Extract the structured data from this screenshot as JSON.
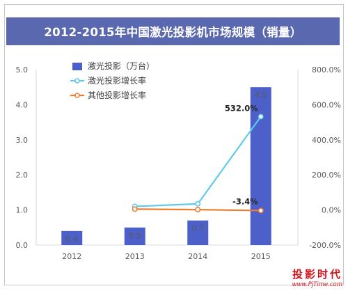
{
  "chart_data": {
    "type": "bar",
    "title": "2012-2015年中国激光投影机市场规模（销量）",
    "categories": [
      "2012",
      "2013",
      "2014",
      "2015"
    ],
    "y_left": {
      "ticks": [
        "0.0",
        "1.0",
        "2.0",
        "3.0",
        "4.0",
        "5.0"
      ],
      "ylim": [
        0,
        5
      ]
    },
    "y_right": {
      "ticks": [
        "-200.0%",
        "0.0%",
        "200.0%",
        "400.0%",
        "600.0%",
        "800.0%"
      ],
      "ylim": [
        -200,
        800
      ]
    },
    "series": [
      {
        "name": "激光投影（万台）",
        "kind": "bar",
        "axis": "left",
        "color": "#4d5fc9",
        "values": [
          0.4,
          0.5,
          0.7,
          4.5
        ],
        "labels": [
          "0.4",
          "0.5",
          "0.7",
          "4.5"
        ]
      },
      {
        "name": "激光投影增长率",
        "kind": "line",
        "axis": "right",
        "color": "#5ccbed",
        "values": [
          null,
          20,
          35,
          532.0
        ],
        "point_labels": [
          null,
          null,
          null,
          "532.0%"
        ]
      },
      {
        "name": "其他投影增长率",
        "kind": "line",
        "axis": "right",
        "color": "#ed7d31",
        "values": [
          null,
          5,
          2,
          -3.4
        ],
        "point_labels": [
          null,
          null,
          null,
          "-3.4%"
        ]
      }
    ],
    "legend_position": "top-left"
  },
  "watermark": {
    "text": "投影时代",
    "url": "www.PjTime.com"
  }
}
